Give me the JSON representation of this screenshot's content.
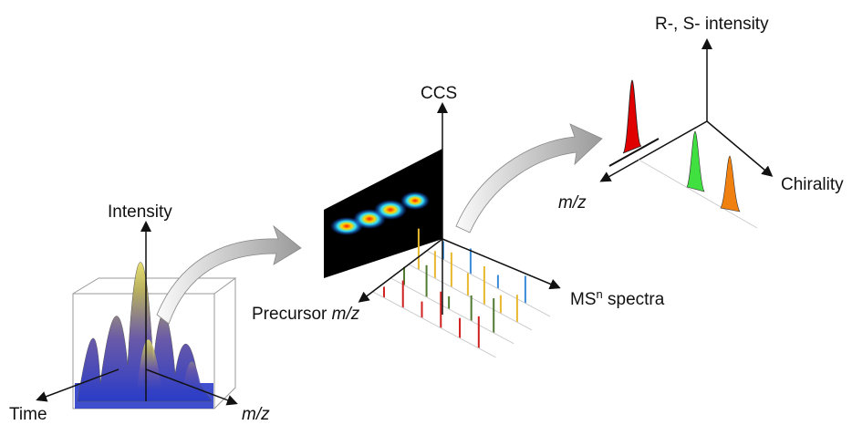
{
  "panel_1": {
    "y_axis": "Intensity",
    "x_axis": "Time",
    "z_axis": "m/z"
  },
  "panel_2": {
    "y_axis": "CCS",
    "x_axis": {
      "text": "Precursor ",
      "italic": "m/z"
    },
    "z_axis": {
      "base": "MS",
      "sup": "n",
      "rest": " spectra"
    }
  },
  "panel_3": {
    "y_axis": "R-, S- intensity",
    "x_axis": "m/z",
    "z_axis": "Chirality"
  }
}
